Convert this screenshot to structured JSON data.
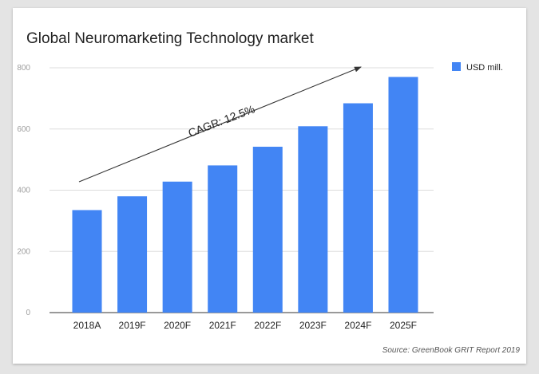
{
  "chart_data": {
    "type": "bar",
    "title": "Global Neuromarketing Technology market",
    "source": "Source: GreenBook GRIT Report 2019",
    "categories": [
      "2018A",
      "2019F",
      "2020F",
      "2021F",
      "2022F",
      "2023F",
      "2024F",
      "2025F"
    ],
    "series": [
      {
        "name": "USD mill.",
        "values": [
          335,
          380,
          428,
          481,
          542,
          609,
          684,
          770
        ],
        "color": "#4285f4"
      }
    ],
    "yticks": [
      "0",
      "200",
      "400",
      "600",
      "800"
    ],
    "ylim": [
      0,
      800
    ],
    "grid": true,
    "legend": "top-right",
    "annotation": {
      "text": "CAGR: 12.5%",
      "type": "trend-arrow"
    }
  }
}
